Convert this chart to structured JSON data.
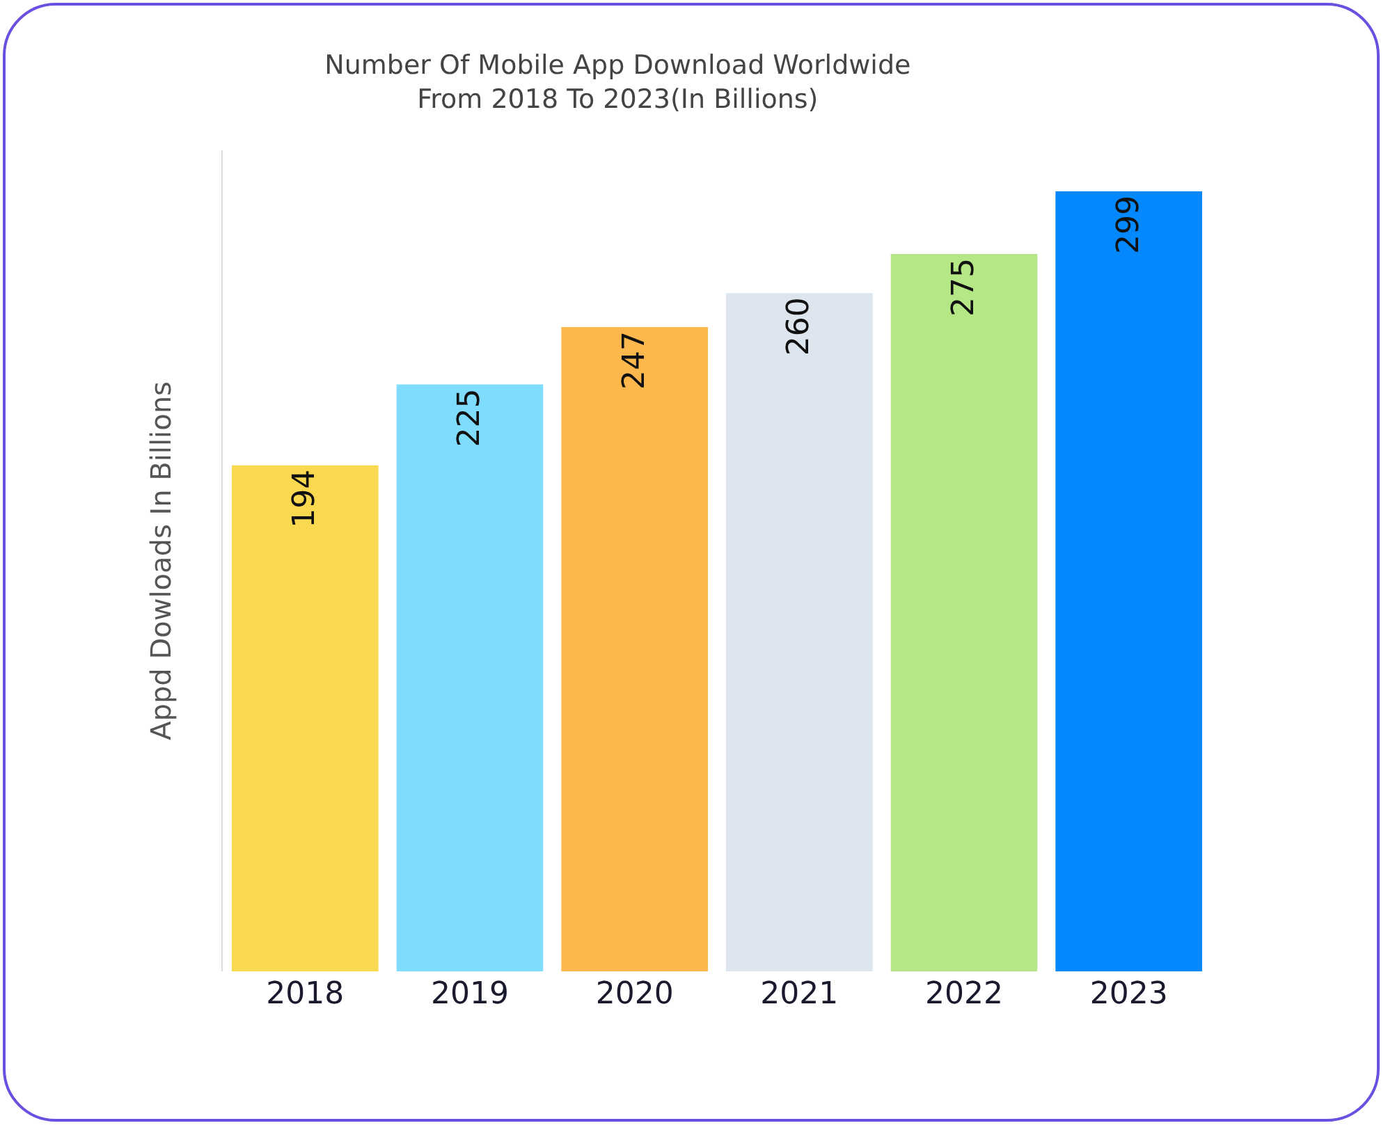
{
  "chart_data": {
    "type": "bar",
    "title": "Number Of Mobile App Download Worldwide\nFrom 2018 To 2023(In Billions)",
    "ylabel": "Appd Dowloads In Billions",
    "categories": [
      "2018",
      "2019",
      "2020",
      "2021",
      "2022",
      "2023"
    ],
    "values": [
      194,
      225,
      247,
      260,
      275,
      299
    ],
    "colors": [
      "#f8d94f",
      "#7fdcfd",
      "#fdb84d",
      "#dde6ee",
      "#b6e787",
      "#0388fd"
    ],
    "tick_labels": "x",
    "data_labels": true,
    "grid": false
  }
}
